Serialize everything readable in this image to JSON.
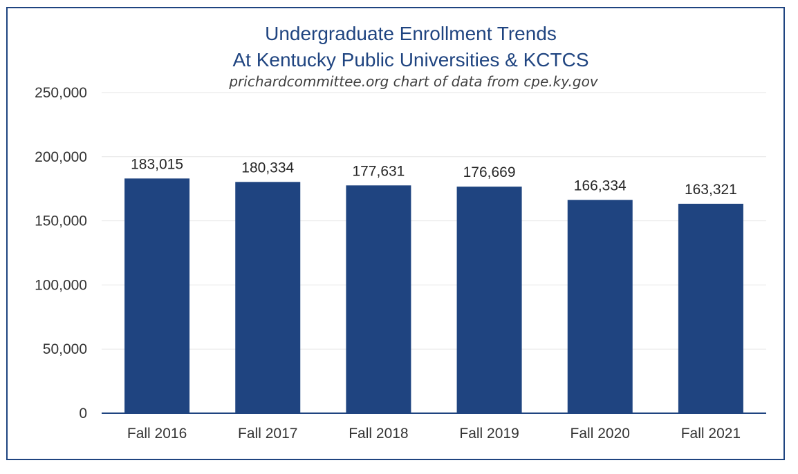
{
  "colors": {
    "border": "#1F4480",
    "bar": "#1F4480",
    "title": "#1F4480",
    "grid": "#E6E6E6",
    "axis": "#1F4480"
  },
  "chart_data": {
    "type": "bar",
    "title_line1": "Undergraduate Enrollment Trends",
    "title_line2": "At Kentucky Public Universities & KCTCS",
    "subtitle": "prichardcommittee.org chart of data from cpe.ky.gov",
    "xlabel": "",
    "ylabel": "",
    "categories": [
      "Fall 2016",
      "Fall 2017",
      "Fall 2018",
      "Fall 2019",
      "Fall 2020",
      "Fall 2021"
    ],
    "values": [
      183015,
      180334,
      177631,
      176669,
      166334,
      163321
    ],
    "data_labels": [
      "183,015",
      "180,334",
      "177,631",
      "176,669",
      "166,334",
      "163,321"
    ],
    "yticks": [
      0,
      50000,
      100000,
      150000,
      200000,
      250000
    ],
    "ytick_labels": [
      "0",
      "50,000",
      "100,000",
      "150,000",
      "200,000",
      "250,000"
    ],
    "ylim": [
      0,
      250000
    ],
    "grid": true,
    "legend": "none"
  }
}
